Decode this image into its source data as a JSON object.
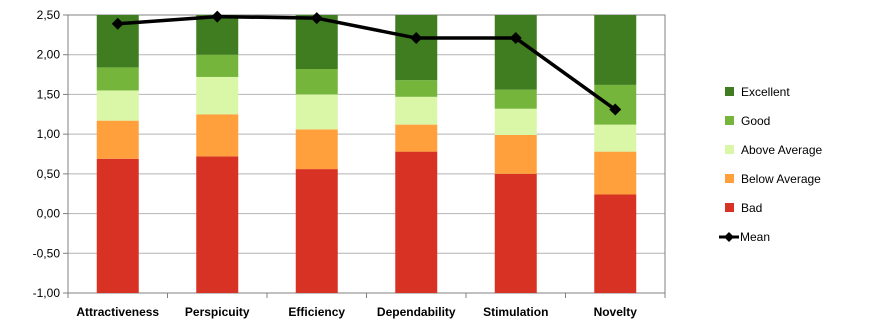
{
  "chart_data": {
    "type": "bar",
    "subtype": "stacked-bar-with-line",
    "title": "",
    "xlabel": "",
    "ylabel": "",
    "ylim": [
      -1.0,
      2.5
    ],
    "yticks": [
      "2,50",
      "2,00",
      "1,50",
      "1,00",
      "0,50",
      "0,00",
      "-0,50",
      "-1,00"
    ],
    "ytick_values": [
      2.5,
      2.0,
      1.5,
      1.0,
      0.5,
      0.0,
      -0.5,
      -1.0
    ],
    "grid": true,
    "legend_position": "right",
    "categories": [
      "Attractiveness",
      "Perspicuity",
      "Efficiency",
      "Dependability",
      "Stimulation",
      "Novelty"
    ],
    "series": [
      {
        "name": "Excellent",
        "color": "#3f7d20",
        "kind": "bar",
        "values": [
          2.5,
          2.5,
          2.5,
          2.5,
          2.5,
          2.5
        ]
      },
      {
        "name": "Good",
        "color": "#76b53c",
        "kind": "bar",
        "values": [
          1.84,
          2.0,
          1.82,
          1.68,
          1.56,
          1.62
        ]
      },
      {
        "name": "Above Average",
        "color": "#d9f7a6",
        "kind": "bar",
        "values": [
          1.55,
          1.72,
          1.5,
          1.47,
          1.32,
          1.12
        ]
      },
      {
        "name": "Below Average",
        "color": "#ffa03c",
        "kind": "bar",
        "values": [
          1.17,
          1.25,
          1.06,
          1.12,
          0.99,
          0.78
        ]
      },
      {
        "name": "Bad",
        "color": "#d83224",
        "kind": "bar",
        "base": -1.0,
        "values": [
          0.69,
          0.72,
          0.56,
          0.78,
          0.5,
          0.24
        ]
      },
      {
        "name": "Mean",
        "color": "#000000",
        "kind": "line",
        "marker": "diamond",
        "values": [
          2.39,
          2.48,
          2.46,
          2.21,
          2.21,
          1.31
        ]
      }
    ]
  }
}
